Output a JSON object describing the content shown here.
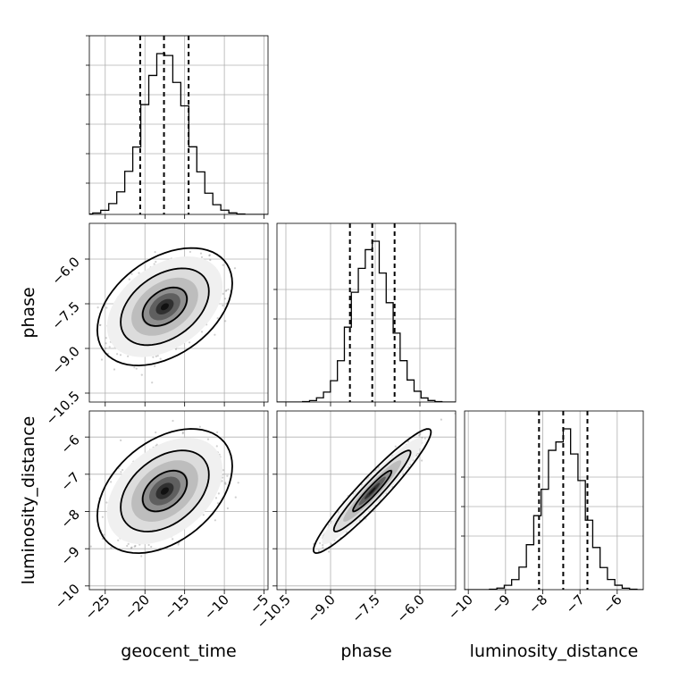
{
  "chart_data": {
    "type": "corner",
    "title": "",
    "grid": true,
    "parameters": [
      {
        "name": "geocent_time",
        "label": "geocent_time",
        "range": [
          -27,
          -4.5
        ],
        "ticks": [
          -25,
          -20,
          -15,
          -10,
          -5
        ],
        "tick_labels": [
          "−25",
          "−20",
          "−15",
          "−10",
          "−5"
        ],
        "mean": -17.5,
        "sd": 2.8,
        "quantiles": [
          -20.6,
          -17.6,
          -14.5
        ]
      },
      {
        "name": "phase",
        "label": "phase",
        "range": [
          -10.8,
          -4.8
        ],
        "ticks": [
          -10.5,
          -9.0,
          -7.5,
          -6.0
        ],
        "tick_labels": [
          "−10.5",
          "−9.0",
          "−7.5",
          "−6.0"
        ],
        "mean": -7.6,
        "sd": 0.65,
        "quantiles": [
          -8.35,
          -7.6,
          -6.85
        ]
      },
      {
        "name": "luminosity_distance",
        "label": "luminosity_distance",
        "range": [
          -10.1,
          -5.3
        ],
        "ticks": [
          -10,
          -9,
          -8,
          -7,
          -6
        ],
        "tick_labels": [
          "−10",
          "−9",
          "−8",
          "−7",
          "−6"
        ],
        "mean": -7.45,
        "sd": 0.55,
        "quantiles": [
          -8.1,
          -7.45,
          -6.8
        ]
      }
    ],
    "correlations": {
      "geocent_time|phase": 0.4,
      "geocent_time|luminosity_distance": 0.4,
      "phase|luminosity_distance": 0.95
    },
    "histogram_bins": 20,
    "contour_levels": [
      0.39,
      0.86,
      0.99
    ]
  }
}
